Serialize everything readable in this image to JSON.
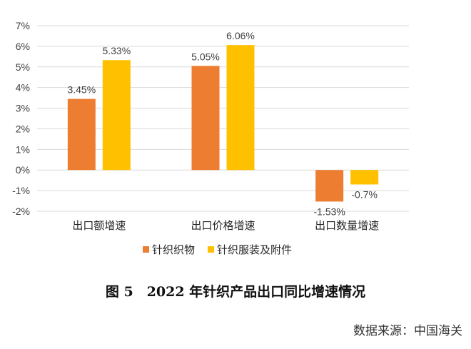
{
  "chart_data": {
    "type": "bar",
    "categories": [
      "出口额增速",
      "出口价格增速",
      "出口数量增速"
    ],
    "series": [
      {
        "name": "针织织物",
        "color": "#ED7D31",
        "values": [
          3.45,
          5.05,
          -1.53
        ],
        "labels": [
          "3.45%",
          "5.05%",
          "-1.53%"
        ]
      },
      {
        "name": "针织服装及附件",
        "color": "#FFC000",
        "values": [
          5.33,
          6.06,
          -0.7
        ],
        "labels": [
          "5.33%",
          "6.06%",
          "-0.7%"
        ]
      }
    ],
    "ylim": [
      -2,
      7
    ],
    "yticks": [
      7,
      6,
      5,
      4,
      3,
      2,
      1,
      0,
      -1,
      -2
    ],
    "ytick_labels": [
      "7%",
      "6%",
      "5%",
      "4%",
      "3%",
      "2%",
      "1%",
      "0%",
      "-1%",
      "-2%"
    ],
    "title": "图 5　2022 年针织产品出口同比增速情况",
    "source": "数据来源：中国海关",
    "grid": true,
    "legend_position": "bottom"
  }
}
